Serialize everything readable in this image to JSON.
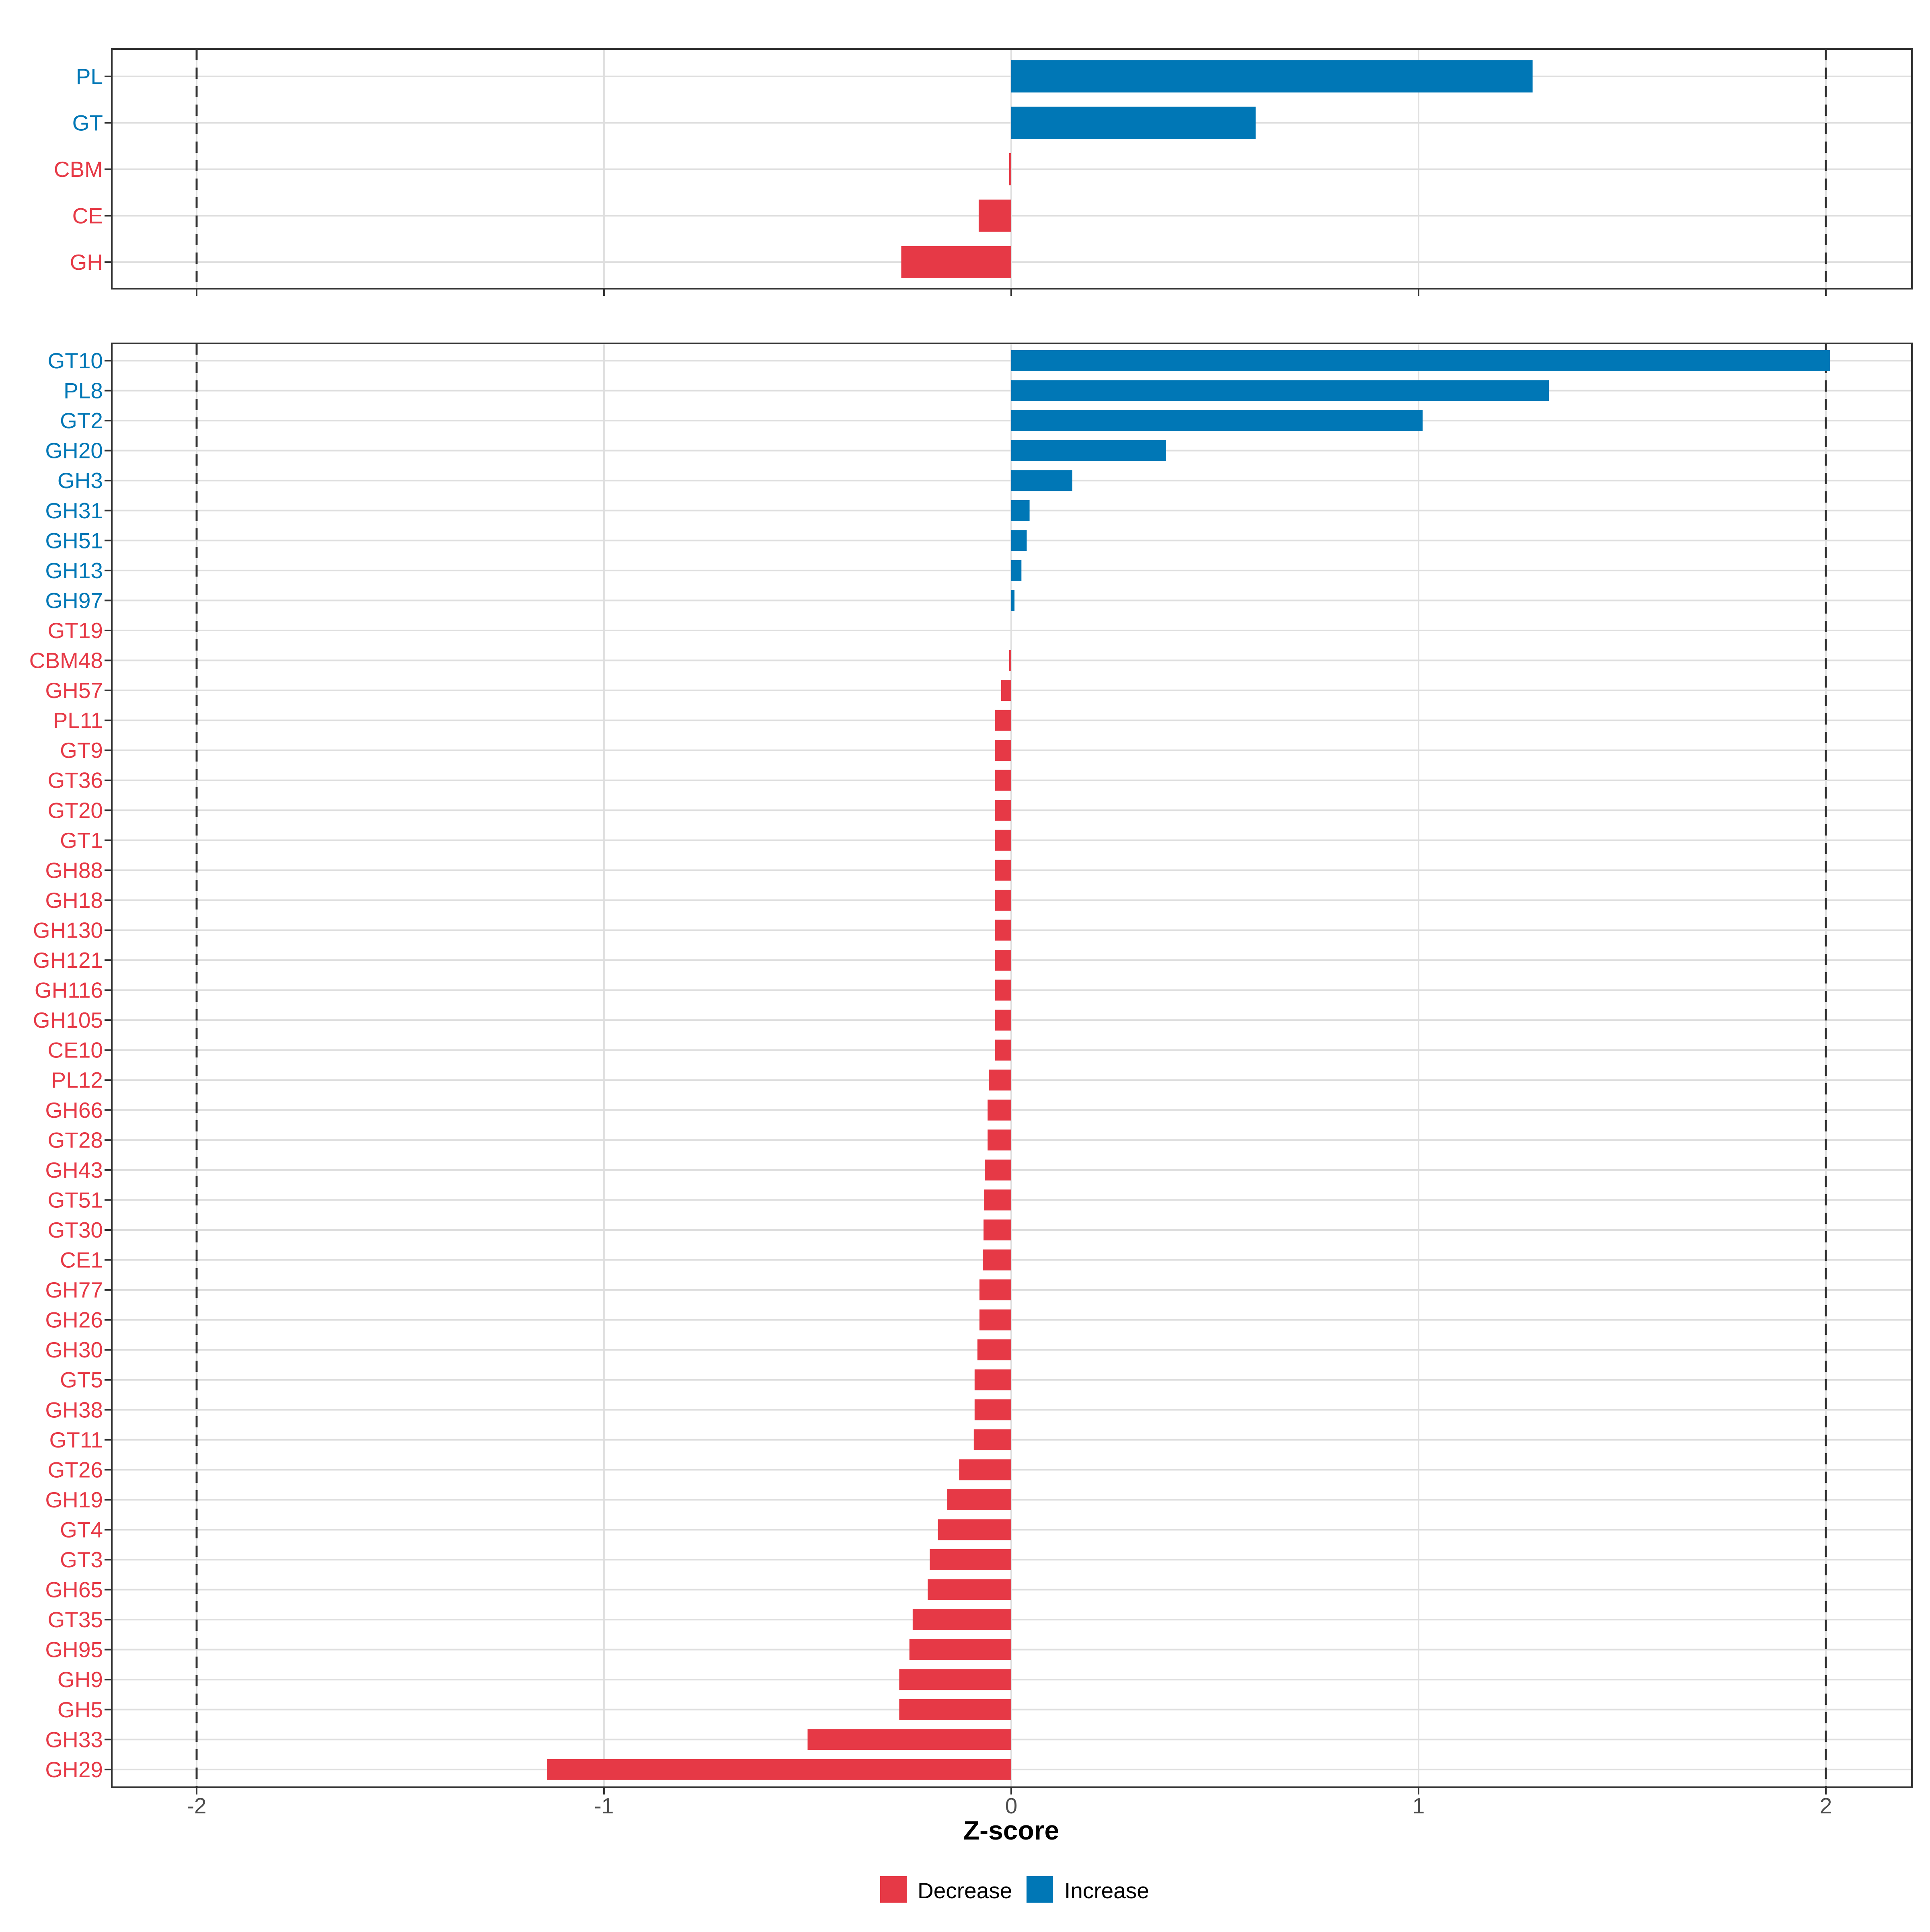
{
  "colors": {
    "decrease": "#E63946",
    "increase": "#0077B6"
  },
  "chart_data": [
    {
      "type": "bar",
      "orientation": "horizontal",
      "panel": "top",
      "xlim": [
        -2.2,
        2.2
      ],
      "reference_lines": [
        -2,
        2
      ],
      "categories": [
        "PL",
        "GT",
        "CBM",
        "CE",
        "GH"
      ],
      "values": [
        1.28,
        0.6,
        -0.005,
        -0.08,
        -0.27
      ],
      "direction": [
        "Increase",
        "Increase",
        "Decrease",
        "Decrease",
        "Decrease"
      ]
    },
    {
      "type": "bar",
      "orientation": "horizontal",
      "panel": "bottom",
      "xlim": [
        -2.2,
        2.2
      ],
      "reference_lines": [
        -2,
        2
      ],
      "categories": [
        "GT10",
        "PL8",
        "GT2",
        "GH20",
        "GH3",
        "GH31",
        "GH51",
        "GH13",
        "GH97",
        "GT19",
        "CBM48",
        "GH57",
        "PL11",
        "GT9",
        "GT36",
        "GT20",
        "GT1",
        "GH88",
        "GH18",
        "GH130",
        "GH121",
        "GH116",
        "GH105",
        "CE10",
        "PL12",
        "GH66",
        "GT28",
        "GH43",
        "GT51",
        "GT30",
        "CE1",
        "GH77",
        "GH26",
        "GH30",
        "GT5",
        "GH38",
        "GT11",
        "GT26",
        "GH19",
        "GT4",
        "GT3",
        "GH65",
        "GT35",
        "GH95",
        "GH9",
        "GH5",
        "GH33",
        "GH29"
      ],
      "values": [
        2.01,
        1.32,
        1.01,
        0.38,
        0.15,
        0.045,
        0.038,
        0.025,
        0.008,
        0.0,
        -0.005,
        -0.025,
        -0.04,
        -0.04,
        -0.04,
        -0.04,
        -0.04,
        -0.04,
        -0.04,
        -0.04,
        -0.04,
        -0.04,
        -0.04,
        -0.04,
        -0.055,
        -0.058,
        -0.058,
        -0.065,
        -0.067,
        -0.068,
        -0.07,
        -0.078,
        -0.078,
        -0.083,
        -0.09,
        -0.09,
        -0.092,
        -0.128,
        -0.158,
        -0.18,
        -0.2,
        -0.205,
        -0.242,
        -0.25,
        -0.275,
        -0.275,
        -0.5,
        -1.14
      ],
      "direction": [
        "Increase",
        "Increase",
        "Increase",
        "Increase",
        "Increase",
        "Increase",
        "Increase",
        "Increase",
        "Increase",
        "Decrease",
        "Decrease",
        "Decrease",
        "Decrease",
        "Decrease",
        "Decrease",
        "Decrease",
        "Decrease",
        "Decrease",
        "Decrease",
        "Decrease",
        "Decrease",
        "Decrease",
        "Decrease",
        "Decrease",
        "Decrease",
        "Decrease",
        "Decrease",
        "Decrease",
        "Decrease",
        "Decrease",
        "Decrease",
        "Decrease",
        "Decrease",
        "Decrease",
        "Decrease",
        "Decrease",
        "Decrease",
        "Decrease",
        "Decrease",
        "Decrease",
        "Decrease",
        "Decrease",
        "Decrease",
        "Decrease",
        "Decrease",
        "Decrease",
        "Decrease",
        "Decrease"
      ],
      "xticks": [
        -2,
        -1,
        0,
        1,
        2
      ],
      "xtick_labels": [
        "-2",
        "-1",
        "0",
        "1",
        "2"
      ],
      "xlabel": "Z-score"
    }
  ],
  "legend": {
    "position": "bottom",
    "items": [
      {
        "label": "Decrease",
        "color_key": "decrease"
      },
      {
        "label": "Increase",
        "color_key": "increase"
      }
    ]
  }
}
